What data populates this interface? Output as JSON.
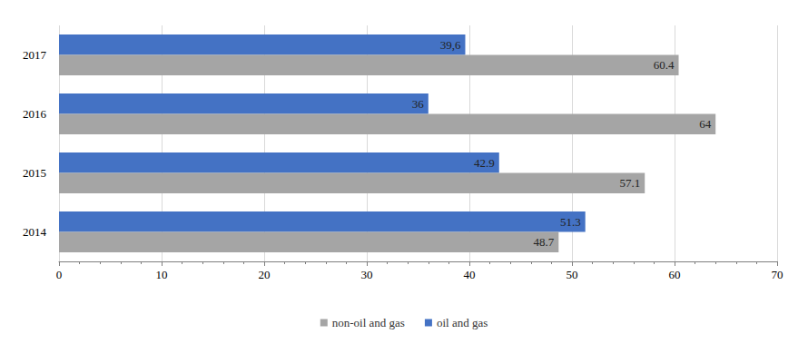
{
  "chart_data": {
    "type": "bar",
    "orientation": "horizontal",
    "categories": [
      "2014",
      "2015",
      "2016",
      "2017"
    ],
    "series": [
      {
        "name": "non-oil and gas",
        "color": "#a5a5a5",
        "values": [
          48.7,
          57.1,
          64,
          60.4
        ]
      },
      {
        "name": "oil and gas",
        "color": "#4472c4",
        "values": [
          51.3,
          42.9,
          36,
          39.6
        ],
        "value_labels": [
          "51.3",
          "42.9",
          "36",
          "39,6"
        ]
      }
    ],
    "xlim": [
      0,
      70
    ],
    "xticks": [
      0,
      10,
      20,
      30,
      40,
      50,
      60,
      70
    ],
    "grid": true,
    "legend": "bottom",
    "data_labels": true
  }
}
